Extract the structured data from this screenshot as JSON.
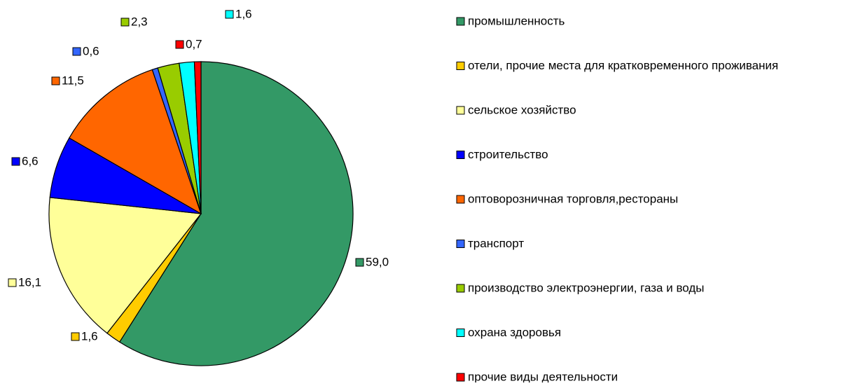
{
  "chart_data": {
    "type": "pie",
    "categories": [
      "промышленность",
      "отели, прочие места для кратковременного проживания",
      "сельское хозяйство",
      "строительство",
      "оптоворозничная торговля,рестораны",
      "транспорт",
      "производство электроэнергии, газа и воды",
      "охрана здоровья",
      "прочие виды деятельности"
    ],
    "values": [
      59.0,
      1.6,
      16.1,
      6.6,
      11.5,
      0.6,
      2.3,
      1.6,
      0.7
    ],
    "value_labels": [
      "59,0",
      "1,6",
      "16,1",
      "6,6",
      "11,5",
      "0,6",
      "2,3",
      "1,6",
      "0,7"
    ],
    "colors": [
      "#339966",
      "#FFCC00",
      "#FFFF99",
      "#0000FF",
      "#FF6600",
      "#3366FF",
      "#99CC00",
      "#00FFFF",
      "#FF0000"
    ],
    "legend": "right"
  }
}
